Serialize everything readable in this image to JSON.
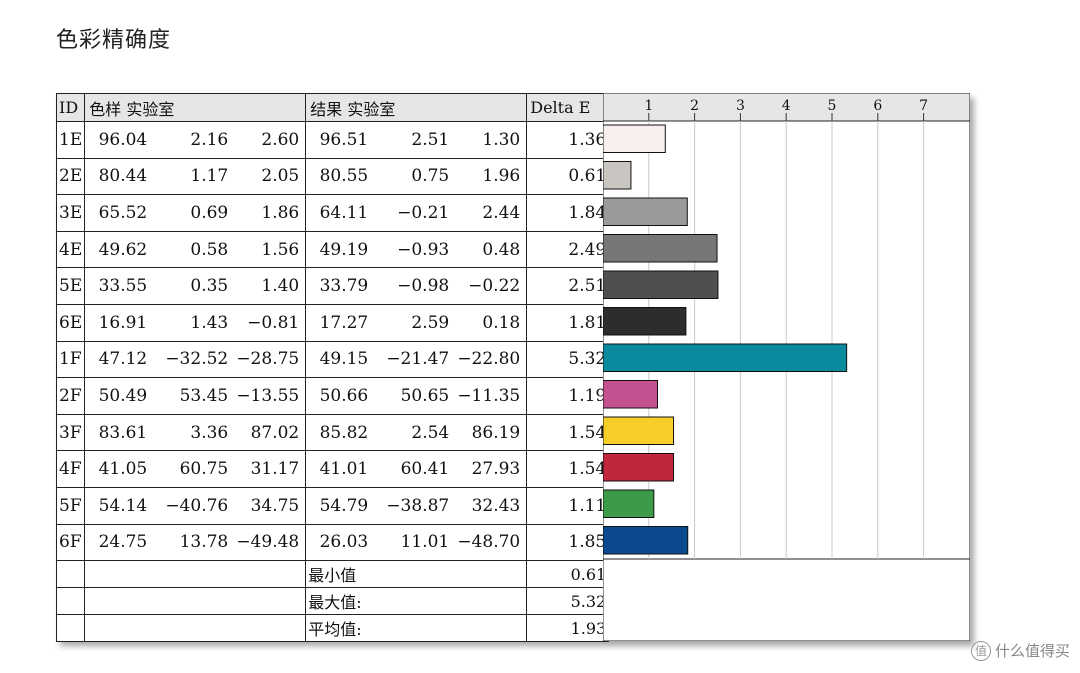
{
  "title": "色彩精确度",
  "table": {
    "headers": {
      "id": "ID",
      "sample": "色样 实验室",
      "result": "结果 实验室",
      "delta": "Delta E"
    },
    "rows": [
      {
        "id": "1E",
        "sample": [
          "96.04",
          "2.16",
          "2.60"
        ],
        "result": [
          "96.51",
          "2.51",
          "1.30"
        ],
        "delta": "1.36"
      },
      {
        "id": "2E",
        "sample": [
          "80.44",
          "1.17",
          "2.05"
        ],
        "result": [
          "80.55",
          "0.75",
          "1.96"
        ],
        "delta": "0.61"
      },
      {
        "id": "3E",
        "sample": [
          "65.52",
          "0.69",
          "1.86"
        ],
        "result": [
          "64.11",
          "−0.21",
          "2.44"
        ],
        "delta": "1.84"
      },
      {
        "id": "4E",
        "sample": [
          "49.62",
          "0.58",
          "1.56"
        ],
        "result": [
          "49.19",
          "−0.93",
          "0.48"
        ],
        "delta": "2.49"
      },
      {
        "id": "5E",
        "sample": [
          "33.55",
          "0.35",
          "1.40"
        ],
        "result": [
          "33.79",
          "−0.98",
          "−0.22"
        ],
        "delta": "2.51"
      },
      {
        "id": "6E",
        "sample": [
          "16.91",
          "1.43",
          "−0.81"
        ],
        "result": [
          "17.27",
          "2.59",
          "0.18"
        ],
        "delta": "1.81"
      },
      {
        "id": "1F",
        "sample": [
          "47.12",
          "−32.52",
          "−28.75"
        ],
        "result": [
          "49.15",
          "−21.47",
          "−22.80"
        ],
        "delta": "5.32"
      },
      {
        "id": "2F",
        "sample": [
          "50.49",
          "53.45",
          "−13.55"
        ],
        "result": [
          "50.66",
          "50.65",
          "−11.35"
        ],
        "delta": "1.19"
      },
      {
        "id": "3F",
        "sample": [
          "83.61",
          "3.36",
          "87.02"
        ],
        "result": [
          "85.82",
          "2.54",
          "86.19"
        ],
        "delta": "1.54"
      },
      {
        "id": "4F",
        "sample": [
          "41.05",
          "60.75",
          "31.17"
        ],
        "result": [
          "41.01",
          "60.41",
          "27.93"
        ],
        "delta": "1.54"
      },
      {
        "id": "5F",
        "sample": [
          "54.14",
          "−40.76",
          "34.75"
        ],
        "result": [
          "54.79",
          "−38.87",
          "32.43"
        ],
        "delta": "1.11"
      },
      {
        "id": "6F",
        "sample": [
          "24.75",
          "13.78",
          "−49.48"
        ],
        "result": [
          "26.03",
          "11.01",
          "−48.70"
        ],
        "delta": "1.85"
      }
    ],
    "summary": [
      {
        "label": "最小值",
        "value": "0.61"
      },
      {
        "label": "最大值:",
        "value": "5.32"
      },
      {
        "label": "平均值:",
        "value": "1.93"
      }
    ]
  },
  "chart_data": {
    "type": "bar",
    "orientation": "horizontal",
    "categories": [
      "1E",
      "2E",
      "3E",
      "4E",
      "5E",
      "6E",
      "1F",
      "2F",
      "3F",
      "4F",
      "5F",
      "6F"
    ],
    "values": [
      1.36,
      0.61,
      1.84,
      2.49,
      2.51,
      1.81,
      5.32,
      1.19,
      1.54,
      1.54,
      1.11,
      1.85
    ],
    "colors": [
      "#f7f0ef",
      "#c9c6c2",
      "#9a9a98",
      "#777775",
      "#4f4f4e",
      "#2e2c2d",
      "#0b8a9e",
      "#c4518f",
      "#f5cf28",
      "#c0273c",
      "#3d9a49",
      "#0b4a8f"
    ],
    "xticks": [
      "1",
      "2",
      "3",
      "4",
      "5",
      "6",
      "7"
    ],
    "xlim": [
      0,
      8
    ],
    "grid": true
  },
  "watermark": "什么值得买",
  "watermark_icon": "值"
}
